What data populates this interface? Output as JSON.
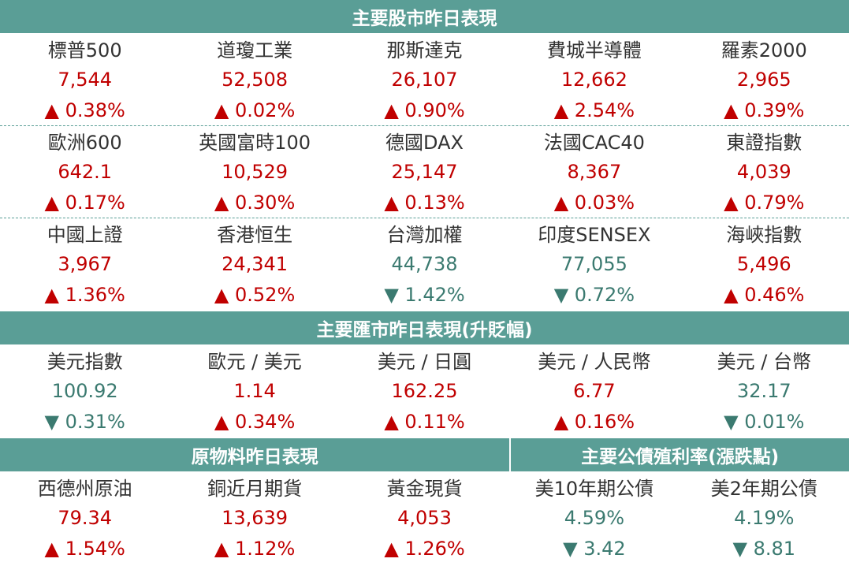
{
  "sections": [
    {
      "headers": [
        "主要股市昨日表現"
      ],
      "groups": [
        [
          {
            "name": "標普500",
            "value": "7,544",
            "change": "▲ 0.38%",
            "color": "#c00000"
          },
          {
            "name": "道瓊工業",
            "value": "52,508",
            "change": "▲ 0.02%",
            "color": "#c00000"
          },
          {
            "name": "那斯達克",
            "value": "26,107",
            "change": "▲ 0.90%",
            "color": "#c00000"
          },
          {
            "name": "費城半導體",
            "value": "12,662",
            "change": "▲ 2.54%",
            "color": "#c00000"
          },
          {
            "name": "羅素2000",
            "value": "2,965",
            "change": "▲ 0.39%",
            "color": "#c00000"
          }
        ],
        [
          {
            "name": "歐洲600",
            "value": "642.1",
            "change": "▲ 0.17%",
            "color": "#c00000"
          },
          {
            "name": "英國富時100",
            "value": "10,529",
            "change": "▲ 0.30%",
            "color": "#c00000"
          },
          {
            "name": "德國DAX",
            "value": "25,147",
            "change": "▲ 0.13%",
            "color": "#c00000"
          },
          {
            "name": "法國CAC40",
            "value": "8,367",
            "change": "▲ 0.03%",
            "color": "#c00000"
          },
          {
            "name": "東證指數",
            "value": "4,039",
            "change": "▲ 0.79%",
            "color": "#c00000"
          }
        ],
        [
          {
            "name": "中國上證",
            "value": "3,967",
            "change": "▲ 1.36%",
            "color": "#c00000"
          },
          {
            "name": "香港恒生",
            "value": "24,341",
            "change": "▲ 0.52%",
            "color": "#c00000"
          },
          {
            "name": "台灣加權",
            "value": "44,738",
            "change": "▼ 1.42%",
            "color": "#3b7a70"
          },
          {
            "name": "印度SENSEX",
            "value": "77,055",
            "change": "▼ 0.72%",
            "color": "#3b7a70"
          },
          {
            "name": "海峽指數",
            "value": "5,496",
            "change": "▲ 0.46%",
            "color": "#c00000"
          }
        ]
      ]
    },
    {
      "headers": [
        "主要匯市昨日表現(升貶幅)"
      ],
      "groups": [
        [
          {
            "name": "美元指數",
            "value": "100.92",
            "change": "▼ 0.31%",
            "color": "#3b7a70"
          },
          {
            "name": "歐元 / 美元",
            "value": "1.14",
            "change": "▲ 0.34%",
            "color": "#c00000"
          },
          {
            "name": "美元 / 日圓",
            "value": "162.25",
            "change": "▲ 0.11%",
            "color": "#c00000"
          },
          {
            "name": "美元 / 人民幣",
            "value": "6.77",
            "change": "▲ 0.16%",
            "color": "#c00000"
          },
          {
            "name": "美元 / 台幣",
            "value": "32.17",
            "change": "▼ 0.01%",
            "color": "#3b7a70"
          }
        ]
      ]
    },
    {
      "headers": [
        "原物料昨日表現",
        "主要公債殖利率(漲跌點)"
      ],
      "groups": [
        [
          {
            "name": "西德州原油",
            "value": "79.34",
            "change": "▲ 1.54%",
            "color": "#c00000"
          },
          {
            "name": "銅近月期貨",
            "value": "13,639",
            "change": "▲ 1.12%",
            "color": "#c00000"
          },
          {
            "name": "黃金現貨",
            "value": "4,053",
            "change": "▲ 1.26%",
            "color": "#c00000"
          },
          {
            "name": "美10年期公債",
            "value": "4.59%",
            "change": "▼ 3.42",
            "color": "#3b7a70"
          },
          {
            "name": "美2年期公債",
            "value": "4.19%",
            "change": "▼ 8.81",
            "color": "#3b7a70"
          }
        ]
      ]
    }
  ]
}
